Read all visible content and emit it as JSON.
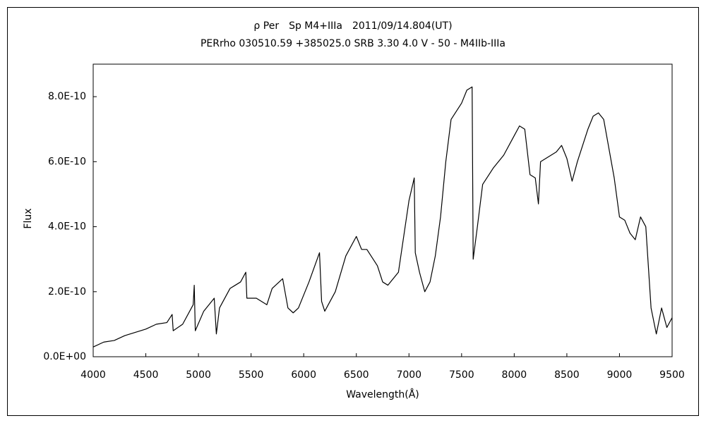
{
  "chart_data": {
    "type": "line",
    "title": "ρ Per　Sp M4+IIIa　2011/09/14.804(UT)",
    "subtitle": "PERrho 030510.59 +385025.0 SRB 3.30 4.0 V - 50 - M4IIb-IIIa",
    "x_label": "Wavelength(Å)",
    "y_label": "Flux",
    "x": [
      4000,
      4100,
      4200,
      4300,
      4400,
      4500,
      4600,
      4700,
      4750,
      4760,
      4850,
      4950,
      4960,
      4970,
      5050,
      5150,
      5170,
      5200,
      5300,
      5350,
      5400,
      5450,
      5460,
      5550,
      5600,
      5650,
      5700,
      5800,
      5850,
      5900,
      5950,
      6050,
      6150,
      6170,
      6200,
      6300,
      6400,
      6500,
      6550,
      6600,
      6700,
      6750,
      6800,
      6900,
      7000,
      7050,
      7060,
      7100,
      7150,
      7200,
      7250,
      7300,
      7350,
      7400,
      7500,
      7550,
      7600,
      7610,
      7650,
      7700,
      7800,
      7900,
      8000,
      8050,
      8100,
      8150,
      8200,
      8230,
      8250,
      8300,
      8400,
      8450,
      8500,
      8550,
      8600,
      8700,
      8750,
      8800,
      8850,
      8900,
      8950,
      9000,
      9050,
      9100,
      9150,
      9200,
      9250,
      9300,
      9350,
      9400,
      9450,
      9500
    ],
    "values": [
      3e-11,
      4.5e-11,
      5e-11,
      6.5e-11,
      7.5e-11,
      8.5e-11,
      1e-10,
      1.05e-10,
      1.3e-10,
      8e-11,
      1e-10,
      1.6e-10,
      2.2e-10,
      8e-11,
      1.4e-10,
      1.8e-10,
      7e-11,
      1.5e-10,
      2.1e-10,
      2.2e-10,
      2.3e-10,
      2.6e-10,
      1.8e-10,
      1.8e-10,
      1.7e-10,
      1.6e-10,
      2.1e-10,
      2.4e-10,
      1.5e-10,
      1.35e-10,
      1.5e-10,
      2.3e-10,
      3.2e-10,
      1.7e-10,
      1.4e-10,
      2e-10,
      3.1e-10,
      3.7e-10,
      3.3e-10,
      3.3e-10,
      2.8e-10,
      2.3e-10,
      2.2e-10,
      2.6e-10,
      4.8e-10,
      5.5e-10,
      3.2e-10,
      2.6e-10,
      2e-10,
      2.3e-10,
      3.1e-10,
      4.3e-10,
      6e-10,
      7.3e-10,
      7.8e-10,
      8.2e-10,
      8.3e-10,
      3e-10,
      4e-10,
      5.3e-10,
      5.8e-10,
      6.2e-10,
      6.8e-10,
      7.1e-10,
      7e-10,
      5.6e-10,
      5.5e-10,
      4.7e-10,
      6e-10,
      6.1e-10,
      6.3e-10,
      6.5e-10,
      6.1e-10,
      5.4e-10,
      6e-10,
      7e-10,
      7.4e-10,
      7.5e-10,
      7.3e-10,
      6.4e-10,
      5.5e-10,
      4.3e-10,
      4.2e-10,
      3.8e-10,
      3.6e-10,
      4.3e-10,
      4e-10,
      1.5e-10,
      7e-11,
      1.5e-10,
      9e-11,
      1.2e-10
    ],
    "color": "#000000",
    "xlim": [
      4000,
      9500
    ],
    "xticks": [
      4000,
      4500,
      5000,
      5500,
      6000,
      6500,
      7000,
      7500,
      8000,
      8500,
      9000,
      9500
    ],
    "ylim": [
      0,
      9e-10
    ],
    "yticks": [
      {
        "value": 0,
        "label": "0.0E+00"
      },
      {
        "value": 2e-10,
        "label": "2.0E-10"
      },
      {
        "value": 4e-10,
        "label": "4.0E-10"
      },
      {
        "value": 6e-10,
        "label": "6.0E-10"
      },
      {
        "value": 8e-10,
        "label": "8.0E-10"
      }
    ],
    "grid": false
  }
}
